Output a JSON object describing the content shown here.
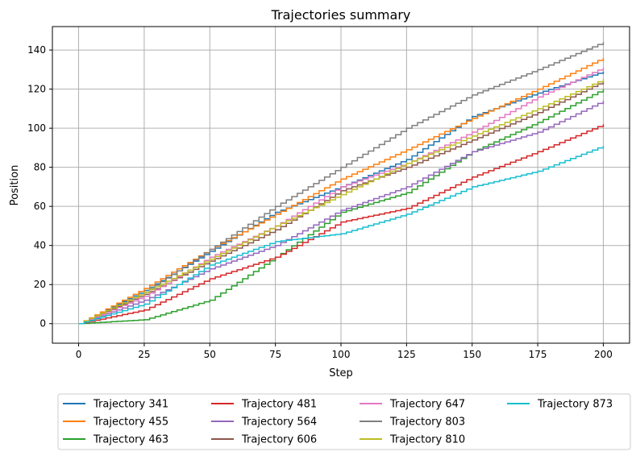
{
  "chart_data": {
    "type": "line",
    "title": "Trajectories summary",
    "xlabel": "Step",
    "ylabel": "Position",
    "xlim": [
      -10,
      210
    ],
    "ylim": [
      -10,
      152
    ],
    "xticks": [
      0,
      25,
      50,
      75,
      100,
      125,
      150,
      175,
      200
    ],
    "yticks": [
      0,
      20,
      40,
      60,
      80,
      100,
      120,
      140
    ],
    "grid": true,
    "legend_position": "bottom-center, below plot, 4 columns",
    "series": [
      {
        "name": "Trajectory 341",
        "color": "#1f77b4",
        "x": [
          0,
          25,
          50,
          75,
          100,
          125,
          150,
          175,
          200
        ],
        "y": [
          0,
          17,
          37,
          57,
          70,
          84,
          106,
          118,
          129
        ]
      },
      {
        "name": "Trajectory 455",
        "color": "#ff7f0e",
        "x": [
          0,
          25,
          50,
          75,
          100,
          125,
          150,
          175,
          200
        ],
        "y": [
          0,
          18,
          38,
          56,
          74,
          89,
          105,
          120,
          136
        ]
      },
      {
        "name": "Trajectory 463",
        "color": "#2ca02c",
        "x": [
          0,
          25,
          50,
          75,
          100,
          125,
          150,
          175,
          200
        ],
        "y": [
          0,
          2,
          12,
          34,
          57,
          67,
          88,
          103,
          120
        ]
      },
      {
        "name": "Trajectory 481",
        "color": "#d62728",
        "x": [
          0,
          25,
          50,
          75,
          100,
          125,
          150,
          175,
          200
        ],
        "y": [
          0,
          7,
          23,
          34,
          52,
          59,
          75,
          88,
          102
        ]
      },
      {
        "name": "Trajectory 564",
        "color": "#9467bd",
        "x": [
          0,
          25,
          50,
          75,
          100,
          125,
          150,
          175,
          200
        ],
        "y": [
          0,
          12,
          28,
          40,
          58,
          70,
          88,
          98,
          114
        ]
      },
      {
        "name": "Trajectory 606",
        "color": "#8c564b",
        "x": [
          0,
          25,
          50,
          75,
          100,
          125,
          150,
          175,
          200
        ],
        "y": [
          0,
          15,
          32,
          48,
          68,
          80,
          94,
          108,
          124
        ]
      },
      {
        "name": "Trajectory 647",
        "color": "#e377c2",
        "x": [
          0,
          25,
          50,
          75,
          100,
          125,
          150,
          175,
          200
        ],
        "y": [
          0,
          14,
          34,
          50,
          70,
          82,
          98,
          116,
          131
        ]
      },
      {
        "name": "Trajectory 803",
        "color": "#7f7f7f",
        "x": [
          0,
          25,
          50,
          75,
          100,
          125,
          150,
          175,
          200
        ],
        "y": [
          0,
          16,
          38,
          60,
          80,
          100,
          117,
          130,
          144
        ]
      },
      {
        "name": "Trajectory 810",
        "color": "#bcbd22",
        "x": [
          0,
          25,
          50,
          75,
          100,
          125,
          150,
          175,
          200
        ],
        "y": [
          0,
          16,
          33,
          50,
          66,
          82,
          96,
          110,
          125
        ]
      },
      {
        "name": "Trajectory 873",
        "color": "#17becf",
        "x": [
          0,
          25,
          50,
          75,
          100,
          125,
          150,
          175,
          200
        ],
        "y": [
          0,
          10,
          30,
          42,
          46,
          56,
          70,
          78,
          91
        ]
      }
    ]
  }
}
